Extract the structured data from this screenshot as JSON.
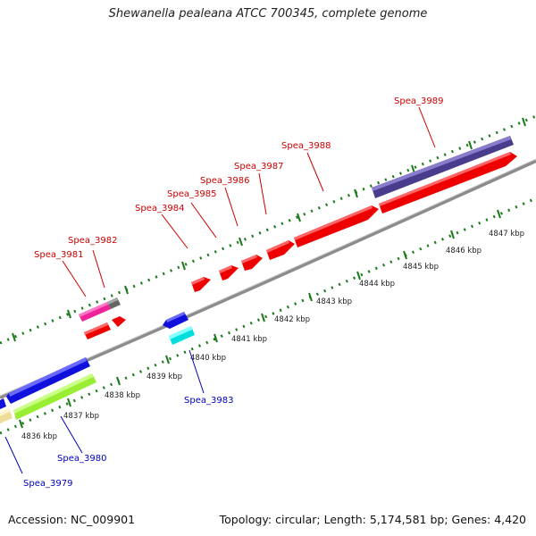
{
  "title": "Shewanella pealeana ATCC 700345, complete genome",
  "footer": {
    "accession": "Accession: NC_009901",
    "summary": "Topology: circular; Length: 5,174,581 bp; Genes: 4,420"
  },
  "kbp_labels": [
    "4836 kbp",
    "4837 kbp",
    "4838 kbp",
    "4839 kbp",
    "4840 kbp",
    "4841 kbp",
    "4842 kbp",
    "4843 kbp",
    "4844 kbp",
    "4845 kbp",
    "4846 kbp",
    "4847 kbp"
  ],
  "gene_labels": {
    "spea_3979": "Spea_3979",
    "spea_3980": "Spea_3980",
    "spea_3981": "Spea_3981",
    "spea_3982": "Spea_3982",
    "spea_3983": "Spea_3983",
    "spea_3984": "Spea_3984",
    "spea_3985": "Spea_3985",
    "spea_3986": "Spea_3986",
    "spea_3987": "Spea_3987",
    "spea_3988": "Spea_3988",
    "spea_3989": "Spea_3989"
  },
  "colors": {
    "forward_label": "#cc0000",
    "reverse_label": "#0000bb",
    "backbone": "#8c8c8c",
    "tick": "#1a7a1a",
    "red": "#ee0000",
    "blue": "#1010dd",
    "navy": "#4a3c8c",
    "magenta": "#ee2299",
    "gray": "#666666",
    "lime": "#99ee33",
    "cyan": "#00dddd",
    "khaki": "#eedd99"
  }
}
